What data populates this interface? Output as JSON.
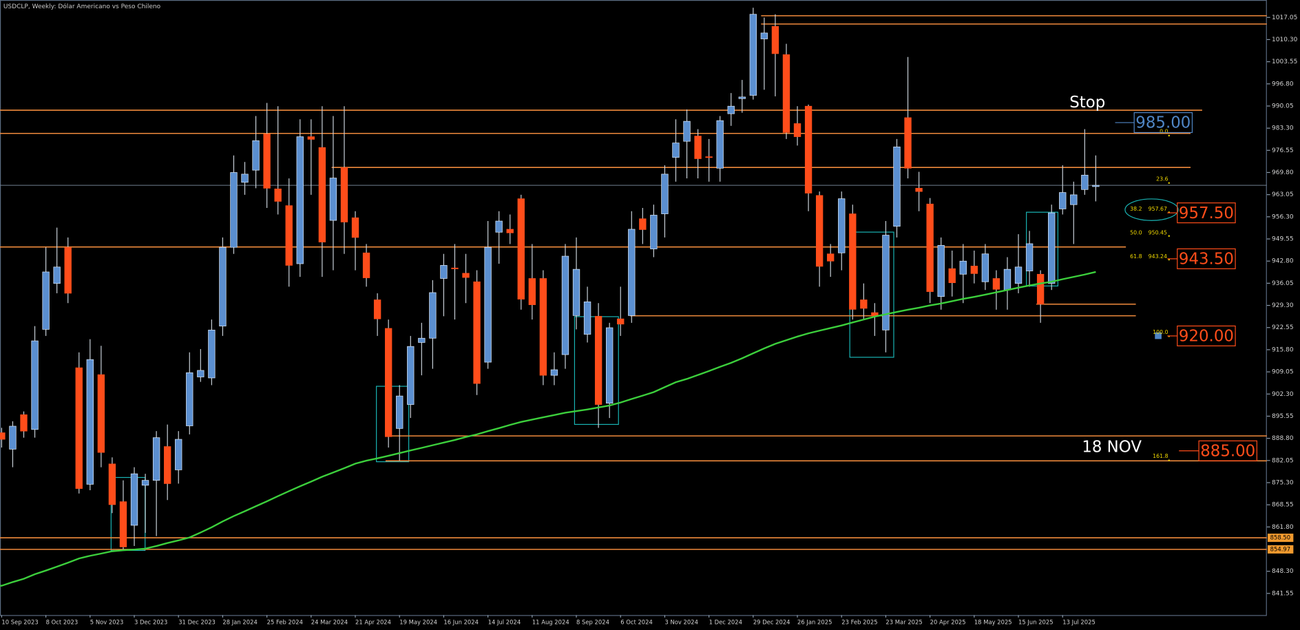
{
  "chart_data": {
    "type": "candlestick",
    "title": "USDCLP, Weekly:  Dólar Americano vs Peso Chileno",
    "categories": [
      "10 Sep 2023",
      null,
      null,
      null,
      "8 Oct 2023",
      null,
      null,
      null,
      "5 Nov 2023",
      null,
      null,
      null,
      "3 Dec 2023",
      null,
      null,
      null,
      "31 Dec 2023",
      null,
      null,
      null,
      "28 Jan 2024",
      null,
      null,
      null,
      "25 Feb 2024",
      null,
      null,
      null,
      "24 Mar 2024",
      null,
      null,
      null,
      "21 Apr 2024",
      null,
      null,
      null,
      "19 May 2024",
      null,
      null,
      null,
      "16 Jun 2024",
      null,
      null,
      null,
      "14 Jul 2024",
      null,
      null,
      null,
      "11 Aug 2024",
      null,
      null,
      null,
      "8 Sep 2024",
      null,
      null,
      null,
      "6 Oct 2024",
      null,
      null,
      null,
      "3 Nov 2024",
      null,
      null,
      null,
      "1 Dec 2024",
      null,
      null,
      null,
      "29 Dec 2024",
      null,
      null,
      null,
      "26 Jan 2025",
      null,
      null,
      null,
      "23 Feb 2025",
      null,
      null,
      null,
      "23 Mar 2025",
      null,
      null,
      null,
      "20 Apr 2025",
      null,
      null,
      null,
      "18 May 2025",
      null,
      null,
      null,
      "15 Jun 2025",
      null,
      null,
      null,
      "13 Jul 2025",
      null,
      null,
      null
    ],
    "open": [
      890.5,
      885.5,
      896,
      891.5,
      922,
      936,
      947,
      910.3,
      874.8,
      908.2,
      881,
      869.5,
      862.3,
      874.5,
      876,
      886.3,
      879.2,
      892.6,
      907.5,
      907.2,
      923,
      947,
      966.8,
      970.5,
      981.5,
      964.8,
      959.7,
      942,
      980.7,
      977.4,
      955.2,
      971.3,
      956,
      945.3,
      931,
      922.3,
      891.8,
      899.1,
      918,
      919.3,
      937.5,
      940.7,
      939.1,
      936.5,
      912,
      951.6,
      952.5,
      961.8,
      937.5,
      937.5,
      908,
      914.3,
      926.2,
      920.5,
      926,
      899.5,
      925.2,
      926.2,
      955.7,
      946.5,
      957.2,
      974.4,
      979.3,
      980.9,
      974.6,
      971.1,
      987.7,
      992.3,
      993.3,
      1010.5,
      1014.3,
      1005.7,
      984.7,
      990,
      962.8,
      945,
      945.3,
      957.2,
      931,
      927.1,
      921.8,
      953.4,
      986.5,
      965,
      960.2,
      932,
      940.5,
      938.8,
      941.3,
      936.5,
      937.5,
      934,
      936,
      939.8,
      938.8,
      936,
      958.7,
      960,
      964.6,
      965.5
    ],
    "high": [
      892,
      894,
      897,
      923,
      947,
      953,
      950,
      915,
      919,
      917,
      883,
      876,
      880,
      878,
      891,
      893,
      891,
      915,
      916,
      925,
      950,
      975,
      973,
      987,
      991,
      990,
      968,
      986,
      986,
      990,
      987,
      990,
      958,
      948,
      933,
      925,
      905,
      920,
      924,
      937,
      945,
      948,
      945,
      940,
      955,
      958,
      957,
      963,
      948,
      940,
      915,
      948,
      950,
      935,
      930,
      924,
      935,
      958,
      959,
      960,
      972,
      986,
      989,
      983,
      980,
      987,
      994,
      998,
      1020,
      1017,
      1018,
      1009,
      990,
      990.5,
      964,
      948,
      964,
      960,
      936,
      930,
      955,
      980,
      1005,
      970,
      962,
      950,
      946,
      948,
      946,
      948,
      940,
      944,
      951,
      952,
      940,
      960,
      972,
      967,
      983,
      975
    ],
    "low": [
      886,
      880,
      889,
      889,
      920,
      933,
      930,
      872,
      873,
      880,
      866,
      855,
      856,
      860,
      859,
      870,
      875,
      890,
      906,
      905,
      920,
      945,
      963,
      965,
      959,
      957,
      935,
      938,
      963,
      938,
      940,
      945,
      940,
      935,
      920,
      886,
      882,
      895,
      908,
      910,
      926,
      925,
      930,
      902,
      910,
      942,
      948,
      928,
      925,
      905,
      905,
      910,
      922,
      918,
      892,
      895,
      920,
      924,
      948,
      944,
      950,
      967,
      968,
      968,
      967,
      967,
      984,
      988,
      992,
      995,
      993,
      980,
      978,
      958,
      935,
      938,
      940,
      925,
      925,
      920,
      915,
      950,
      968,
      958,
      930,
      928,
      932,
      930,
      936,
      934,
      928,
      928,
      933,
      935,
      924,
      934,
      957,
      948,
      963,
      961
    ],
    "close": [
      888.5,
      892.5,
      891,
      918.5,
      939.5,
      941,
      933,
      873.5,
      912.8,
      884.5,
      868.6,
      855.7,
      878,
      876,
      889,
      875,
      888.5,
      908.8,
      909.5,
      921.8,
      947,
      969.8,
      969.3,
      979.5,
      965,
      961,
      941.5,
      980.7,
      979.9,
      948.6,
      968.1,
      954.7,
      950,
      937.7,
      925.2,
      889.3,
      901.7,
      916.8,
      919.3,
      933.2,
      941.5,
      940.6,
      937.8,
      905.5,
      947,
      955,
      951.4,
      931.2,
      929.5,
      908,
      909.7,
      944.3,
      940.3,
      930.4,
      899.1,
      922.5,
      923.6,
      952.5,
      952.4,
      956.8,
      969.3,
      978.8,
      985.4,
      974,
      974.4,
      985.6,
      990,
      992.8,
      1018,
      1012.3,
      1006,
      982,
      980.7,
      963.5,
      941.2,
      942.8,
      961.8,
      928.1,
      928.4,
      926.1,
      950.7,
      977.6,
      971.1,
      964,
      933.5,
      947.6,
      936.2,
      942.8,
      939,
      945,
      934.2,
      940.3,
      941,
      948.1,
      929.7,
      957.5,
      963.7,
      963,
      969,
      965.9
    ],
    "up_color": "#5b8fd0",
    "down_color": "#ff4d1a",
    "wick_color": "#c8d0d8",
    "ma": {
      "color": "#3ccf3c",
      "values": [
        843.9,
        845.0,
        846.0,
        847.4,
        848.5,
        849.7,
        850.9,
        852.2,
        853.0,
        853.7,
        854.4,
        854.7,
        854.9,
        855.2,
        856.0,
        856.9,
        857.7,
        858.6,
        860.1,
        861.7,
        863.5,
        865.1,
        866.6,
        868.1,
        869.6,
        871.2,
        872.7,
        874.2,
        875.6,
        877.1,
        878.4,
        879.7,
        881.1,
        882.0,
        882.7,
        883.5,
        884.3,
        885.1,
        885.9,
        886.7,
        887.5,
        888.3,
        889.2,
        890.0,
        891.0,
        891.9,
        892.9,
        893.8,
        894.5,
        895.2,
        895.9,
        896.6,
        897.1,
        897.6,
        898.2,
        898.8,
        899.7,
        900.8,
        901.8,
        902.9,
        904.4,
        905.9,
        906.9,
        908.1,
        909.3,
        910.6,
        911.8,
        913.2,
        914.7,
        916.2,
        917.6,
        918.7,
        919.8,
        920.8,
        921.6,
        922.4,
        923.2,
        924.1,
        925.0,
        925.9,
        926.6,
        927.3,
        928.0,
        928.6,
        929.3,
        929.9,
        930.6,
        931.3,
        931.9,
        932.6,
        933.3,
        934.0,
        934.7,
        935.4,
        936.0,
        936.5,
        937.3,
        938.0,
        938.7,
        939.5
      ]
    },
    "ylim": [
      834.95,
      1022.35
    ],
    "yticks": [
      1017.05,
      {
        "value": 1010.3,
        "label": "1010.30"
      },
      1003.55,
      {
        "value": 996.8,
        "label": "996.80"
      },
      990.05,
      {
        "value": 983.3,
        "label": "983.30"
      },
      976.55,
      {
        "value": 969.8,
        "label": "969.80"
      },
      963.05,
      {
        "value": 956.3,
        "label": "956.30"
      },
      949.55,
      {
        "value": 942.8,
        "label": "942.80"
      },
      936.05,
      {
        "value": 929.3,
        "label": "929.30"
      },
      922.55,
      {
        "value": 915.8,
        "label": "915.80"
      },
      909.05,
      {
        "value": 902.3,
        "label": "902.30"
      },
      895.55,
      {
        "value": 888.8,
        "label": "888.80"
      },
      882.05,
      {
        "value": 875.3,
        "label": "875.30"
      },
      868.55,
      {
        "value": 861.8,
        "label": "861.80"
      },
      {
        "value": 848.3,
        "label": "848.30"
      },
      841.55
    ],
    "levels": [
      1017.55,
      1015.03,
      988.77,
      981.7,
      971.34,
      947.1,
      929.68,
      926.14,
      889.53,
      881.95,
      858.5,
      854.97
    ],
    "level_color": "#f08a3c",
    "price_tags": [
      {
        "value": 858.5,
        "label": "858.50"
      },
      854.97
    ],
    "targets": [
      {
        "value": 985,
        "label": "985.00",
        "color": "#4f86c6"
      },
      {
        "value": 957.5,
        "label": "957.50",
        "color": "#ff4d1a"
      },
      {
        "value": 943.5,
        "label": "943.50",
        "color": "#ff4d1a"
      },
      {
        "value": 920,
        "label": "920.00",
        "color": "#ff4d1a"
      },
      {
        "value": 885,
        "label": "885.00",
        "color": "#ff4d1a"
      }
    ],
    "annotations": [
      "Stop",
      "18 NOV"
    ],
    "fib_color": "#f0d800",
    "fib": [
      {
        "level": {
          "value": 0,
          "label": "0.0"
        }
      },
      {
        "level": 23.6
      },
      {
        "level": 38.2,
        "price": 957.67
      },
      {
        "level": {
          "value": 50,
          "label": "50.0"
        },
        "price": 950.45
      },
      {
        "level": 61.8,
        "price": 943.24
      },
      {
        "level": {
          "value": 100,
          "label": "100.0"
        }
      },
      {
        "level": 161.8
      }
    ]
  }
}
